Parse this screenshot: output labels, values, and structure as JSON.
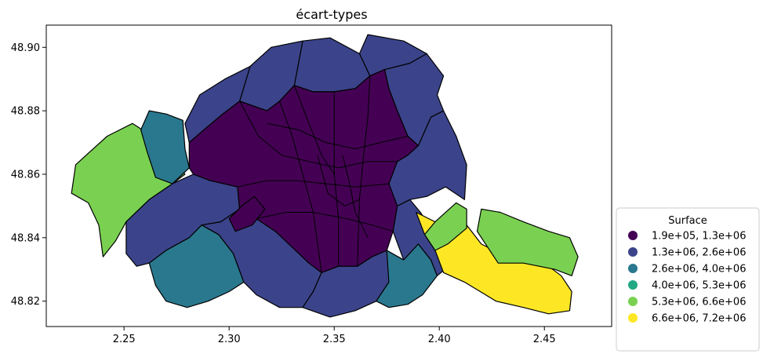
{
  "chart_data": {
    "type": "choropleth",
    "title": "écart-types",
    "xlim": [
      2.213,
      2.482
    ],
    "ylim": [
      48.812,
      48.907
    ],
    "x_ticks": [
      2.25,
      2.3,
      2.35,
      2.4,
      2.45
    ],
    "x_tick_labels": [
      "2.25",
      "2.30",
      "2.35",
      "2.40",
      "2.45"
    ],
    "y_ticks": [
      48.82,
      48.84,
      48.86,
      48.88,
      48.9
    ],
    "y_tick_labels": [
      "48.82",
      "48.84",
      "48.86",
      "48.88",
      "48.90"
    ],
    "legend": {
      "title": "Surface",
      "placement": "lower-right-outside",
      "classes": [
        {
          "label": "1.9e+05, 1.3e+06",
          "color": "#440154"
        },
        {
          "label": "1.3e+06, 2.6e+06",
          "color": "#3b448a"
        },
        {
          "label": "2.6e+06, 4.0e+06",
          "color": "#2a788e"
        },
        {
          "label": "4.0e+06, 5.3e+06",
          "color": "#22a884"
        },
        {
          "label": "5.3e+06, 6.6e+06",
          "color": "#7ad151"
        },
        {
          "label": "6.6e+06, 7.2e+06",
          "color": "#fde725"
        }
      ]
    },
    "regions": [
      {
        "cls": 4,
        "pts": [
          [
            2.225,
            48.854
          ],
          [
            2.227,
            48.863
          ],
          [
            2.232,
            48.866
          ],
          [
            2.242,
            48.872
          ],
          [
            2.254,
            48.876
          ],
          [
            2.261,
            48.873
          ],
          [
            2.269,
            48.868
          ],
          [
            2.279,
            48.86
          ],
          [
            2.273,
            48.857
          ],
          [
            2.262,
            48.852
          ],
          [
            2.251,
            48.845
          ],
          [
            2.246,
            48.839
          ],
          [
            2.24,
            48.834
          ],
          [
            2.238,
            48.844
          ],
          [
            2.233,
            48.851
          ]
        ]
      },
      {
        "cls": 2,
        "pts": [
          [
            2.258,
            48.874
          ],
          [
            2.262,
            48.88
          ],
          [
            2.27,
            48.879
          ],
          [
            2.278,
            48.877
          ],
          [
            2.279,
            48.868
          ],
          [
            2.281,
            48.862
          ],
          [
            2.273,
            48.857
          ],
          [
            2.265,
            48.859
          ],
          [
            2.261,
            48.867
          ]
        ]
      },
      {
        "cls": 1,
        "pts": [
          [
            2.283,
            48.86
          ],
          [
            2.291,
            48.858
          ],
          [
            2.304,
            48.856
          ],
          [
            2.305,
            48.849
          ],
          [
            2.296,
            48.845
          ],
          [
            2.287,
            48.844
          ],
          [
            2.281,
            48.84
          ],
          [
            2.27,
            48.836
          ],
          [
            2.262,
            48.832
          ],
          [
            2.256,
            48.831
          ],
          [
            2.251,
            48.835
          ],
          [
            2.251,
            48.845
          ],
          [
            2.262,
            48.852
          ],
          [
            2.273,
            48.857
          ]
        ]
      },
      {
        "cls": 2,
        "pts": [
          [
            2.262,
            48.832
          ],
          [
            2.27,
            48.836
          ],
          [
            2.281,
            48.84
          ],
          [
            2.287,
            48.844
          ],
          [
            2.295,
            48.841
          ],
          [
            2.302,
            48.835
          ],
          [
            2.307,
            48.826
          ],
          [
            2.3,
            48.823
          ],
          [
            2.29,
            48.82
          ],
          [
            2.28,
            48.818
          ],
          [
            2.27,
            48.82
          ],
          [
            2.265,
            48.825
          ]
        ]
      },
      {
        "cls": 1,
        "pts": [
          [
            2.287,
            48.844
          ],
          [
            2.296,
            48.845
          ],
          [
            2.305,
            48.849
          ],
          [
            2.313,
            48.846
          ],
          [
            2.322,
            48.842
          ],
          [
            2.33,
            48.837
          ],
          [
            2.338,
            48.832
          ],
          [
            2.344,
            48.829
          ],
          [
            2.34,
            48.823
          ],
          [
            2.335,
            48.818
          ],
          [
            2.324,
            48.818
          ],
          [
            2.313,
            48.822
          ],
          [
            2.307,
            48.826
          ],
          [
            2.302,
            48.835
          ],
          [
            2.295,
            48.841
          ]
        ]
      },
      {
        "cls": 1,
        "pts": [
          [
            2.335,
            48.818
          ],
          [
            2.34,
            48.823
          ],
          [
            2.344,
            48.829
          ],
          [
            2.352,
            48.831
          ],
          [
            2.361,
            48.831
          ],
          [
            2.368,
            48.834
          ],
          [
            2.375,
            48.836
          ],
          [
            2.383,
            48.833
          ],
          [
            2.376,
            48.826
          ],
          [
            2.37,
            48.82
          ],
          [
            2.36,
            48.817
          ],
          [
            2.348,
            48.815
          ]
        ]
      },
      {
        "cls": 2,
        "pts": [
          [
            2.375,
            48.836
          ],
          [
            2.383,
            48.833
          ],
          [
            2.39,
            48.838
          ],
          [
            2.396,
            48.833
          ],
          [
            2.399,
            48.828
          ],
          [
            2.392,
            48.822
          ],
          [
            2.385,
            48.819
          ],
          [
            2.376,
            48.818
          ],
          [
            2.37,
            48.82
          ],
          [
            2.376,
            48.826
          ]
        ]
      },
      {
        "cls": 1,
        "pts": [
          [
            2.383,
            48.833
          ],
          [
            2.39,
            48.838
          ],
          [
            2.396,
            48.833
          ],
          [
            2.399,
            48.828
          ],
          [
            2.41,
            48.834
          ],
          [
            2.403,
            48.838
          ],
          [
            2.396,
            48.843
          ],
          [
            2.391,
            48.848
          ],
          [
            2.386,
            48.852
          ],
          [
            2.38,
            48.85
          ],
          [
            2.378,
            48.842
          ]
        ]
      },
      {
        "cls": 5,
        "pts": [
          [
            2.389,
            48.848
          ],
          [
            2.398,
            48.845
          ],
          [
            2.413,
            48.844
          ],
          [
            2.42,
            48.838
          ],
          [
            2.432,
            48.834
          ],
          [
            2.45,
            48.832
          ],
          [
            2.458,
            48.828
          ],
          [
            2.463,
            48.823
          ],
          [
            2.462,
            48.817
          ],
          [
            2.452,
            48.816
          ],
          [
            2.44,
            48.818
          ],
          [
            2.427,
            48.82
          ],
          [
            2.412,
            48.826
          ],
          [
            2.402,
            48.829
          ],
          [
            2.398,
            48.836
          ],
          [
            2.393,
            48.841
          ]
        ]
      },
      {
        "cls": 4,
        "pts": [
          [
            2.398,
            48.845
          ],
          [
            2.408,
            48.851
          ],
          [
            2.413,
            48.849
          ],
          [
            2.413,
            48.843
          ],
          [
            2.404,
            48.838
          ],
          [
            2.398,
            48.836
          ],
          [
            2.393,
            48.841
          ]
        ]
      },
      {
        "cls": 4,
        "pts": [
          [
            2.418,
            48.842
          ],
          [
            2.42,
            48.849
          ],
          [
            2.429,
            48.848
          ],
          [
            2.44,
            48.845
          ],
          [
            2.452,
            48.842
          ],
          [
            2.462,
            48.84
          ],
          [
            2.466,
            48.834
          ],
          [
            2.463,
            48.828
          ],
          [
            2.455,
            48.83
          ],
          [
            2.44,
            48.832
          ],
          [
            2.428,
            48.832
          ]
        ]
      },
      {
        "cls": 1,
        "pts": [
          [
            2.38,
            48.85
          ],
          [
            2.386,
            48.852
          ],
          [
            2.394,
            48.853
          ],
          [
            2.403,
            48.856
          ],
          [
            2.412,
            48.852
          ],
          [
            2.413,
            48.863
          ],
          [
            2.408,
            48.872
          ],
          [
            2.402,
            48.88
          ],
          [
            2.396,
            48.878
          ],
          [
            2.39,
            48.869
          ],
          [
            2.385,
            48.866
          ],
          [
            2.38,
            48.864
          ],
          [
            2.376,
            48.857
          ]
        ]
      },
      {
        "cls": 1,
        "pts": [
          [
            2.374,
            48.893
          ],
          [
            2.386,
            48.895
          ],
          [
            2.394,
            48.898
          ],
          [
            2.402,
            48.891
          ],
          [
            2.399,
            48.885
          ],
          [
            2.402,
            48.88
          ],
          [
            2.396,
            48.878
          ],
          [
            2.39,
            48.869
          ],
          [
            2.385,
            48.872
          ],
          [
            2.38,
            48.88
          ],
          [
            2.376,
            48.887
          ]
        ]
      },
      {
        "cls": 1,
        "pts": [
          [
            2.362,
            48.898
          ],
          [
            2.366,
            48.904
          ],
          [
            2.383,
            48.902
          ],
          [
            2.394,
            48.898
          ],
          [
            2.386,
            48.895
          ],
          [
            2.374,
            48.893
          ],
          [
            2.367,
            48.891
          ]
        ]
      },
      {
        "cls": 1,
        "pts": [
          [
            2.335,
            48.902
          ],
          [
            2.348,
            48.903
          ],
          [
            2.362,
            48.898
          ],
          [
            2.367,
            48.891
          ],
          [
            2.36,
            48.887
          ],
          [
            2.35,
            48.886
          ],
          [
            2.34,
            48.886
          ],
          [
            2.331,
            48.888
          ]
        ]
      },
      {
        "cls": 1,
        "pts": [
          [
            2.31,
            48.894
          ],
          [
            2.32,
            48.9
          ],
          [
            2.335,
            48.902
          ],
          [
            2.331,
            48.888
          ],
          [
            2.324,
            48.883
          ],
          [
            2.318,
            48.88
          ],
          [
            2.305,
            48.883
          ]
        ]
      },
      {
        "cls": 1,
        "pts": [
          [
            2.279,
            48.876
          ],
          [
            2.286,
            48.885
          ],
          [
            2.298,
            48.89
          ],
          [
            2.31,
            48.894
          ],
          [
            2.305,
            48.883
          ],
          [
            2.297,
            48.879
          ],
          [
            2.288,
            48.874
          ],
          [
            2.281,
            48.87
          ]
        ]
      },
      {
        "cls": 0,
        "pts": [
          [
            2.297,
            48.879
          ],
          [
            2.305,
            48.883
          ],
          [
            2.318,
            48.88
          ],
          [
            2.324,
            48.883
          ],
          [
            2.331,
            48.888
          ],
          [
            2.34,
            48.886
          ],
          [
            2.35,
            48.886
          ],
          [
            2.36,
            48.887
          ],
          [
            2.367,
            48.891
          ],
          [
            2.374,
            48.893
          ],
          [
            2.376,
            48.887
          ],
          [
            2.38,
            48.88
          ],
          [
            2.385,
            48.872
          ],
          [
            2.39,
            48.869
          ],
          [
            2.385,
            48.866
          ],
          [
            2.38,
            48.864
          ],
          [
            2.376,
            48.857
          ],
          [
            2.38,
            48.85
          ],
          [
            2.378,
            48.842
          ],
          [
            2.375,
            48.836
          ],
          [
            2.368,
            48.834
          ],
          [
            2.361,
            48.831
          ],
          [
            2.352,
            48.831
          ],
          [
            2.344,
            48.829
          ],
          [
            2.338,
            48.832
          ],
          [
            2.33,
            48.837
          ],
          [
            2.322,
            48.842
          ],
          [
            2.313,
            48.846
          ],
          [
            2.305,
            48.849
          ],
          [
            2.304,
            48.856
          ],
          [
            2.291,
            48.858
          ],
          [
            2.283,
            48.86
          ],
          [
            2.281,
            48.862
          ],
          [
            2.281,
            48.87
          ],
          [
            2.288,
            48.874
          ]
        ]
      },
      {
        "cls": 0,
        "pts": [
          [
            2.3,
            48.846
          ],
          [
            2.306,
            48.85
          ],
          [
            2.312,
            48.853
          ],
          [
            2.317,
            48.849
          ],
          [
            2.311,
            48.844
          ],
          [
            2.303,
            48.842
          ]
        ]
      }
    ],
    "internal_lines": [
      [
        [
          2.305,
          48.883
        ],
        [
          2.314,
          48.872
        ],
        [
          2.325,
          48.866
        ],
        [
          2.338,
          48.864
        ],
        [
          2.352,
          48.862
        ],
        [
          2.366,
          48.864
        ],
        [
          2.38,
          48.864
        ]
      ],
      [
        [
          2.324,
          48.883
        ],
        [
          2.33,
          48.872
        ],
        [
          2.335,
          48.86
        ],
        [
          2.34,
          48.848
        ],
        [
          2.344,
          48.829
        ]
      ],
      [
        [
          2.35,
          48.886
        ],
        [
          2.35,
          48.872
        ],
        [
          2.35,
          48.86
        ],
        [
          2.352,
          48.846
        ],
        [
          2.352,
          48.831
        ]
      ],
      [
        [
          2.367,
          48.891
        ],
        [
          2.366,
          48.878
        ],
        [
          2.364,
          48.866
        ],
        [
          2.362,
          48.852
        ],
        [
          2.361,
          48.831
        ]
      ],
      [
        [
          2.304,
          48.856
        ],
        [
          2.318,
          48.858
        ],
        [
          2.332,
          48.858
        ],
        [
          2.346,
          48.857
        ],
        [
          2.36,
          48.856
        ],
        [
          2.376,
          48.857
        ]
      ],
      [
        [
          2.313,
          48.846
        ],
        [
          2.327,
          48.848
        ],
        [
          2.34,
          48.848
        ],
        [
          2.356,
          48.846
        ],
        [
          2.368,
          48.844
        ],
        [
          2.378,
          48.842
        ]
      ],
      [
        [
          2.331,
          48.888
        ],
        [
          2.338,
          48.876
        ],
        [
          2.344,
          48.866
        ],
        [
          2.35,
          48.86
        ]
      ],
      [
        [
          2.385,
          48.872
        ],
        [
          2.372,
          48.87
        ],
        [
          2.36,
          48.868
        ],
        [
          2.346,
          48.87
        ],
        [
          2.333,
          48.874
        ],
        [
          2.318,
          48.876
        ]
      ],
      [
        [
          2.342,
          48.866
        ],
        [
          2.347,
          48.854
        ],
        [
          2.355,
          48.85
        ],
        [
          2.362,
          48.852
        ]
      ],
      [
        [
          2.354,
          48.866
        ],
        [
          2.357,
          48.858
        ],
        [
          2.36,
          48.848
        ],
        [
          2.366,
          48.84
        ]
      ]
    ]
  }
}
